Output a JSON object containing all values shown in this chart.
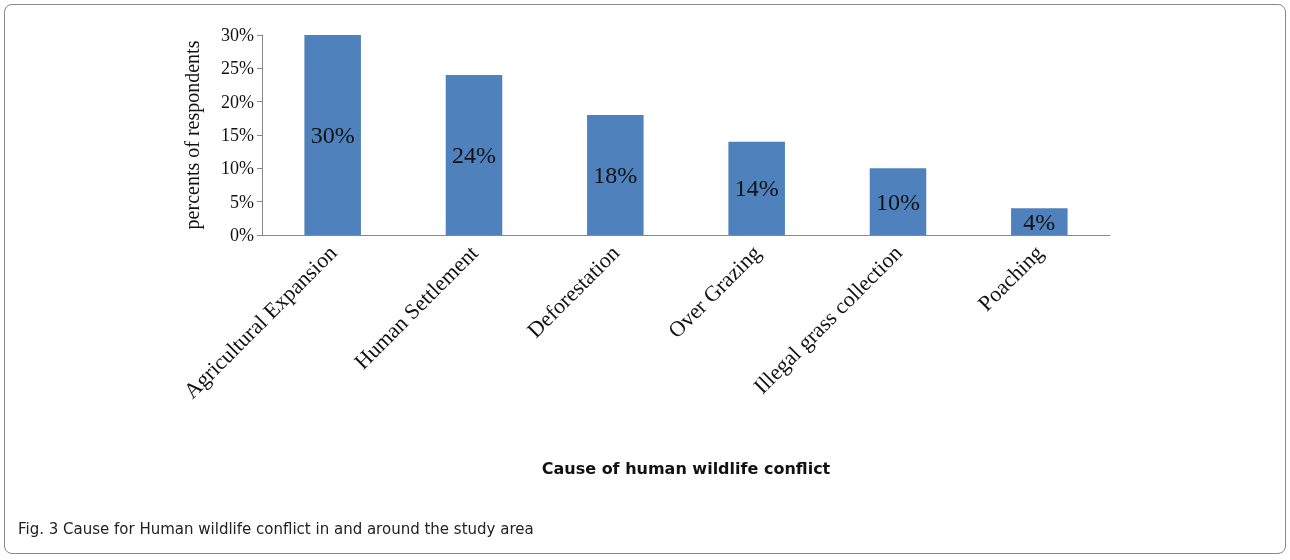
{
  "chart_data": {
    "type": "bar",
    "categories": [
      "Agricultural Expansion",
      "Human Settlement",
      "Deforestation",
      "Over Grazing",
      "Illegal grass collection",
      "Poaching"
    ],
    "values": [
      30,
      24,
      18,
      14,
      10,
      4
    ],
    "value_labels": [
      "30%",
      "24%",
      "18%",
      "14%",
      "10%",
      "4%"
    ],
    "color": "#4f81bd",
    "xlabel": "Cause of human wildlife conflict",
    "ylabel": "percents of respondents",
    "ylim": [
      0,
      30
    ],
    "yticks": [
      {
        "value": 0,
        "label": "0%"
      },
      {
        "value": 5,
        "label": "5%"
      },
      {
        "value": 10,
        "label": "10%"
      },
      {
        "value": 15,
        "label": "15%"
      },
      {
        "value": 20,
        "label": "20%"
      },
      {
        "value": 25,
        "label": "25%"
      },
      {
        "value": 30,
        "label": "30%"
      }
    ],
    "grid": false,
    "annotations": [
      "Fig. 3  Cause for Human wildlife conflict in and around the study area"
    ]
  }
}
